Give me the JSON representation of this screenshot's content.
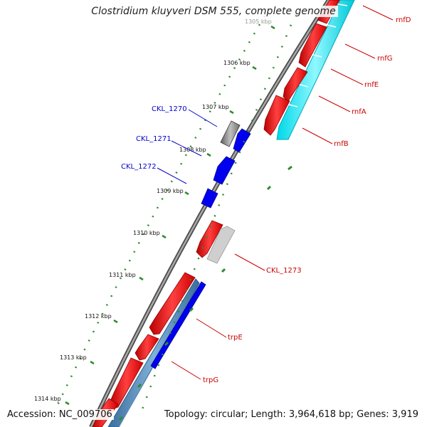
{
  "title": "Clostridium kluyveri DSM 555, complete genome",
  "footer": {
    "accession": "Accession: NC_009706",
    "summary": "Topology: circular; Length: 3,964,618 bp; Genes: 3,919"
  },
  "ticks": [
    "1305 kbp",
    "1306 kbp",
    "1307 kbp",
    "1308 kbp",
    "1309 kbp",
    "1310 kbp",
    "1311 kbp",
    "1312 kbp",
    "1313 kbp",
    "1314 kbp"
  ],
  "gene_labels_right": [
    "rnfD",
    "rnfG",
    "rnfE",
    "rnfA",
    "rnfB",
    "CKL_1273",
    "trpE",
    "trpG"
  ],
  "gene_labels_left": [
    "CKL_1270",
    "CKL_1271",
    "CKL_1272"
  ],
  "colors": {
    "forward_cds": "#ff0000",
    "reverse_cds": "#0000ff",
    "rna_track": "#00e5ee",
    "steelblue_track": "#4a82b4",
    "backbone": "#808080",
    "tick_green": "#2e8b2e",
    "label_red": "#cc0000",
    "label_blue": "#0000cc"
  }
}
